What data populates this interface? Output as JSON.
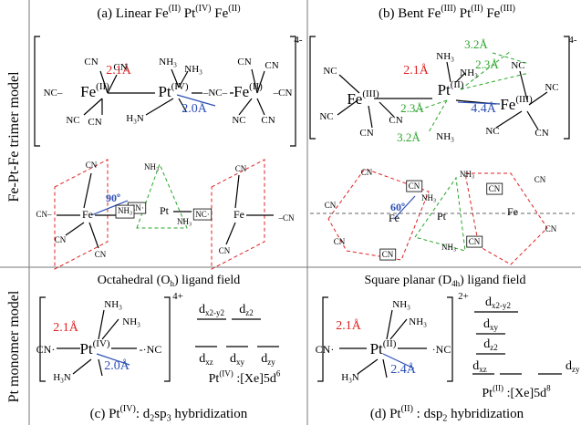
{
  "texts": [
    {
      "segs": [
        "Fe-Pt-Fe trimer model"
      ]
    },
    {
      "segs": [
        "Pt monomer model"
      ]
    },
    {
      "segs": [
        "(a) Linear Fe",
        {
          "sup": "(II)"
        },
        " Pt",
        {
          "sup": "(IV)"
        },
        " Fe",
        {
          "sup": "(II)"
        }
      ]
    },
    {
      "segs": [
        "(b) Bent Fe",
        {
          "sup": "(III)"
        },
        " Pt",
        {
          "sup": "(II)"
        },
        " Fe",
        {
          "sup": "(III)"
        }
      ]
    },
    {
      "segs": [
        "Octahedral (O",
        {
          "sub": "h"
        },
        ") ligand field"
      ]
    },
    {
      "segs": [
        "Square planar (D",
        {
          "sub": "4h"
        },
        ") ligand field"
      ]
    },
    {
      "segs": [
        "(c) Pt",
        {
          "sup": "(IV)"
        },
        ": d",
        {
          "sub": "2"
        },
        "sp",
        {
          "sub": "3"
        },
        " hybridization"
      ]
    },
    {
      "segs": [
        "(d) Pt",
        {
          "sup": "(II)"
        },
        " : dsp",
        {
          "sub": "2"
        },
        "  hybridization"
      ]
    },
    {
      "segs": [
        "2.1Å"
      ]
    },
    {
      "segs": [
        "2.0Å"
      ]
    },
    {
      "segs": [
        "NH",
        {
          "sub": "3"
        }
      ]
    },
    {
      "segs": [
        "NH",
        {
          "sub": "3"
        }
      ]
    },
    {
      "segs": [
        "H",
        {
          "sub": "3"
        },
        "N"
      ]
    },
    {
      "segs": [
        "Fe",
        {
          "sup": "(II)"
        }
      ]
    },
    {
      "segs": [
        "Pt",
        {
          "sup": "(IV)"
        }
      ]
    },
    {
      "segs": [
        "Fe",
        {
          "sup": "(II)"
        }
      ]
    },
    {
      "segs": [
        "CN"
      ]
    },
    {
      "segs": [
        "CN"
      ]
    },
    {
      "segs": [
        "NC–"
      ]
    },
    {
      "segs": [
        "–NC–"
      ]
    },
    {
      "segs": [
        "NC"
      ]
    },
    {
      "segs": [
        "CN"
      ]
    },
    {
      "segs": [
        "CN"
      ]
    },
    {
      "segs": [
        "CN"
      ]
    },
    {
      "segs": [
        "–CN"
      ]
    },
    {
      "segs": [
        "NC"
      ]
    },
    {
      "segs": [
        "CN"
      ]
    },
    {
      "segs": [
        "4-"
      ]
    },
    {
      "segs": [
        "Fe",
        {
          "sup": "(III)"
        }
      ]
    },
    {
      "segs": [
        "Pt",
        {
          "sup": "(II)"
        }
      ]
    },
    {
      "segs": [
        "Fe",
        {
          "sup": "(III)"
        }
      ]
    },
    {
      "segs": [
        "3.2Å"
      ]
    },
    {
      "segs": [
        "2.3Å"
      ]
    },
    {
      "segs": [
        "2.1Å"
      ]
    },
    {
      "segs": [
        "2.3Å"
      ]
    },
    {
      "segs": [
        "4.4Å"
      ]
    },
    {
      "segs": [
        "3.2Å"
      ]
    },
    {
      "segs": [
        "NH",
        {
          "sub": "3"
        }
      ]
    },
    {
      "segs": [
        "NH",
        {
          "sub": "3"
        }
      ]
    },
    {
      "segs": [
        "NH",
        {
          "sub": "3"
        }
      ]
    },
    {
      "segs": [
        "NC"
      ]
    },
    {
      "segs": [
        "NC"
      ]
    },
    {
      "segs": [
        "CN"
      ]
    },
    {
      "segs": [
        "CN"
      ]
    },
    {
      "segs": [
        "NC"
      ]
    },
    {
      "segs": [
        "NC"
      ]
    },
    {
      "segs": [
        "NC"
      ]
    },
    {
      "segs": [
        "CN"
      ]
    },
    {
      "segs": [
        "4-"
      ]
    },
    {
      "segs": [
        "CN"
      ]
    },
    {
      "segs": [
        "CN–"
      ]
    },
    {
      "segs": [
        "CN"
      ]
    },
    {
      "segs": [
        "CN"
      ]
    },
    {
      "segs": [
        "90º"
      ]
    },
    {
      "segs": [
        "Fe"
      ]
    },
    {
      "segs": [
        "CN·"
      ]
    },
    {
      "segs": [
        "Pt"
      ]
    },
    {
      "segs": [
        "NH",
        {
          "sub": "3"
        }
      ]
    },
    {
      "segs": [
        "NH",
        {
          "sub": "3"
        }
      ]
    },
    {
      "segs": [
        "NH",
        {
          "sub": "3"
        }
      ]
    },
    {
      "segs": [
        "NC·"
      ]
    },
    {
      "segs": [
        "Fe"
      ]
    },
    {
      "segs": [
        "CN"
      ]
    },
    {
      "segs": [
        "–CN"
      ]
    },
    {
      "segs": [
        "CN"
      ]
    },
    {
      "segs": [
        "CN"
      ]
    },
    {
      "segs": [
        "CN"
      ]
    },
    {
      "segs": [
        "60º"
      ]
    },
    {
      "segs": [
        "Fe"
      ]
    },
    {
      "segs": [
        "CN"
      ]
    },
    {
      "segs": [
        "CN"
      ]
    },
    {
      "segs": [
        "CN"
      ]
    },
    {
      "segs": [
        "NH",
        {
          "sub": "3"
        }
      ]
    },
    {
      "segs": [
        "NH",
        {
          "sub": "3"
        }
      ]
    },
    {
      "segs": [
        "Pt"
      ]
    },
    {
      "segs": [
        "NH",
        {
          "sub": "3"
        }
      ]
    },
    {
      "segs": [
        "CN"
      ]
    },
    {
      "segs": [
        "Fe"
      ]
    },
    {
      "segs": [
        "CN"
      ]
    },
    {
      "segs": [
        "CN"
      ]
    },
    {
      "segs": [
        "CN"
      ]
    },
    {
      "segs": [
        "2.1Å"
      ]
    },
    {
      "segs": [
        "2.0Å"
      ]
    },
    {
      "segs": [
        "NH",
        {
          "sub": "3"
        }
      ]
    },
    {
      "segs": [
        "NH",
        {
          "sub": "3"
        }
      ]
    },
    {
      "segs": [
        "CN·"
      ]
    },
    {
      "segs": [
        "Pt",
        {
          "sup": "(IV)"
        }
      ]
    },
    {
      "segs": [
        "-·NC"
      ]
    },
    {
      "segs": [
        "H",
        {
          "sub": "3"
        },
        "N"
      ]
    },
    {
      "segs": [
        "4+"
      ]
    },
    {
      "segs": [
        "d",
        {
          "sub": "x2-y2"
        }
      ]
    },
    {
      "segs": [
        "d",
        {
          "sub": "z2"
        }
      ]
    },
    {
      "segs": [
        "d",
        {
          "sub": "xz"
        }
      ]
    },
    {
      "segs": [
        "d",
        {
          "sub": "xy"
        }
      ]
    },
    {
      "segs": [
        "d",
        {
          "sub": "zy"
        }
      ]
    },
    {
      "segs": [
        "Pt",
        {
          "sup": "(IV)"
        },
        " :[Xe]5d",
        {
          "sup": "6"
        }
      ]
    },
    {
      "segs": [
        "2.1Å"
      ]
    },
    {
      "segs": [
        "2.4Å"
      ]
    },
    {
      "segs": [
        "NH",
        {
          "sub": "3"
        }
      ]
    },
    {
      "segs": [
        "NH",
        {
          "sub": "3"
        }
      ]
    },
    {
      "segs": [
        "CN·"
      ]
    },
    {
      "segs": [
        "Pt",
        {
          "sup": "(II)"
        }
      ]
    },
    {
      "segs": [
        "·NC"
      ]
    },
    {
      "segs": [
        "H",
        {
          "sub": "3"
        },
        "N"
      ]
    },
    {
      "segs": [
        "2+"
      ]
    },
    {
      "segs": [
        "d",
        {
          "sub": "x2-y2"
        }
      ]
    },
    {
      "segs": [
        "d",
        {
          "sub": "xy"
        }
      ]
    },
    {
      "segs": [
        "d",
        {
          "sub": "z2"
        }
      ]
    },
    {
      "segs": [
        "d",
        {
          "sub": "xz"
        }
      ]
    },
    {
      "segs": [
        "d",
        {
          "sub": "zy"
        }
      ]
    },
    {
      "segs": [
        "Pt",
        {
          "sup": "(II)"
        },
        " :[Xe]5d",
        {
          "sup": "8"
        }
      ]
    }
  ]
}
